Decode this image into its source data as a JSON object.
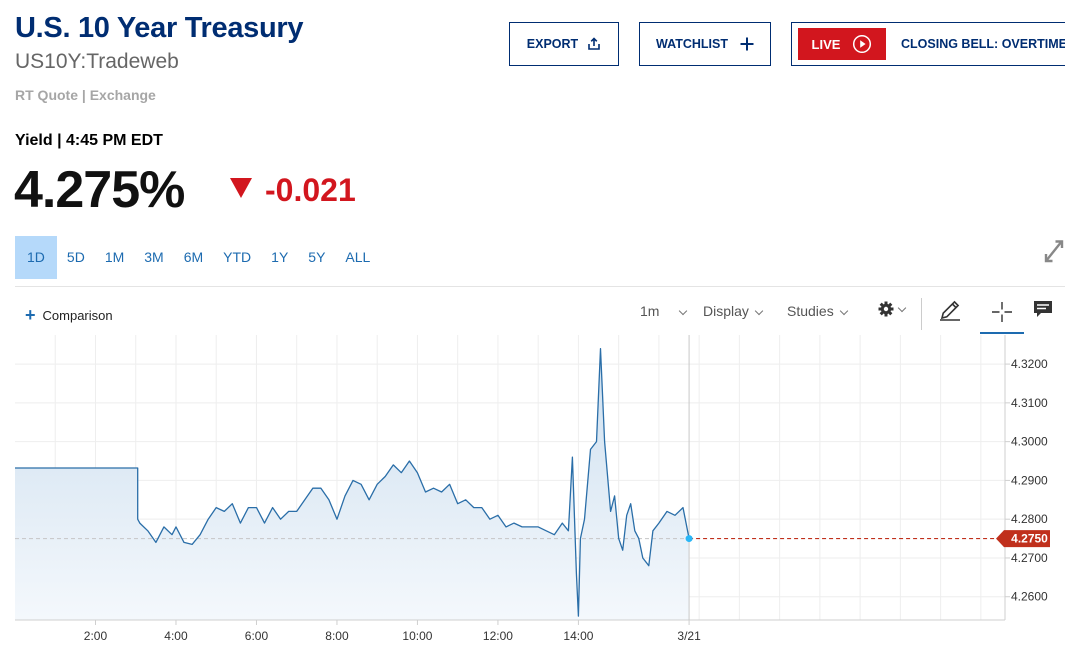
{
  "header": {
    "title": "U.S. 10 Year Treasury",
    "symbol": "US10Y:Tradeweb",
    "quote_source": "RT Quote | Exchange"
  },
  "actions": {
    "export_label": "EXPORT",
    "watchlist_label": "WATCHLIST",
    "live_label": "LIVE",
    "live_show": "CLOSING BELL: OVERTIME"
  },
  "quote": {
    "yield_label": "Yield | 4:45 PM EDT",
    "last": "4.275%",
    "change": "-0.021",
    "change_direction": "down",
    "down_color": "#d2161e"
  },
  "range_tabs": [
    "1D",
    "5D",
    "1M",
    "3M",
    "6M",
    "YTD",
    "1Y",
    "5Y",
    "ALL"
  ],
  "active_range": "1D",
  "toolbar": {
    "comparison_label": "Comparison",
    "interval": "1m",
    "display_label": "Display",
    "studies_label": "Studies",
    "icons": [
      "gear-icon",
      "pencil-icon",
      "crosshair-icon",
      "comment-icon",
      "expand-icon"
    ]
  },
  "chart_data": {
    "type": "area",
    "x_unit": "hours (session time)",
    "xlim": [
      0.0,
      24.6
    ],
    "ylim": [
      4.254,
      4.3275
    ],
    "x_ticks": [
      {
        "x": 2,
        "label": "2:00"
      },
      {
        "x": 4,
        "label": "4:00"
      },
      {
        "x": 6,
        "label": "6:00"
      },
      {
        "x": 8,
        "label": "8:00"
      },
      {
        "x": 10,
        "label": "10:00"
      },
      {
        "x": 12,
        "label": "12:00"
      },
      {
        "x": 14,
        "label": "14:00"
      },
      {
        "x": 16.75,
        "label": "3/21"
      }
    ],
    "y_ticks": [
      "4.2600",
      "4.2700",
      "4.2800",
      "4.2900",
      "4.3000",
      "4.3100",
      "4.3200"
    ],
    "last_price_label": "4.2750",
    "reference_level": 4.275,
    "line_color": "#2a6ea8",
    "fill_color": "#dbe7f3",
    "last_price_color": "#c0301c",
    "series": [
      {
        "x": [
          0.0,
          3.05,
          3.05,
          3.1,
          3.3,
          3.5,
          3.7,
          3.9,
          4.0,
          4.2,
          4.4,
          4.6,
          4.8,
          5.0,
          5.2,
          5.4,
          5.6,
          5.8,
          6.0,
          6.2,
          6.4,
          6.6,
          6.8,
          7.0,
          7.2,
          7.4,
          7.6,
          7.8,
          8.0,
          8.2,
          8.4,
          8.6,
          8.8,
          9.0,
          9.2,
          9.4,
          9.6,
          9.8,
          10.0,
          10.2,
          10.4,
          10.6,
          10.8,
          11.0,
          11.2,
          11.4,
          11.6,
          11.8,
          12.0,
          12.2,
          12.4,
          12.6,
          12.8,
          13.0,
          13.2,
          13.4,
          13.6,
          13.75,
          13.85,
          13.95,
          14.0,
          14.05,
          14.15,
          14.3,
          14.45,
          14.55,
          14.65,
          14.8,
          14.9,
          15.0,
          15.1,
          15.2,
          15.3,
          15.4,
          15.5,
          15.6,
          15.75,
          15.85,
          16.0,
          16.2,
          16.4,
          16.6,
          16.75
        ],
        "values": [
          4.2932,
          4.2932,
          4.28,
          4.279,
          4.277,
          4.274,
          4.278,
          4.276,
          4.278,
          4.274,
          4.2735,
          4.276,
          4.28,
          4.283,
          4.282,
          4.284,
          4.279,
          4.283,
          4.283,
          4.279,
          4.283,
          4.28,
          4.282,
          4.282,
          4.285,
          4.288,
          4.288,
          4.285,
          4.28,
          4.286,
          4.29,
          4.289,
          4.285,
          4.289,
          4.291,
          4.294,
          4.292,
          4.295,
          4.292,
          4.287,
          4.288,
          4.287,
          4.289,
          4.284,
          4.285,
          4.283,
          4.283,
          4.28,
          4.281,
          4.278,
          4.279,
          4.278,
          4.278,
          4.278,
          4.277,
          4.276,
          4.279,
          4.277,
          4.296,
          4.266,
          4.255,
          4.275,
          4.28,
          4.298,
          4.3,
          4.324,
          4.3,
          4.282,
          4.286,
          4.275,
          4.272,
          4.281,
          4.284,
          4.277,
          4.275,
          4.27,
          4.268,
          4.277,
          4.279,
          4.282,
          4.281,
          4.283,
          4.275
        ]
      }
    ]
  }
}
